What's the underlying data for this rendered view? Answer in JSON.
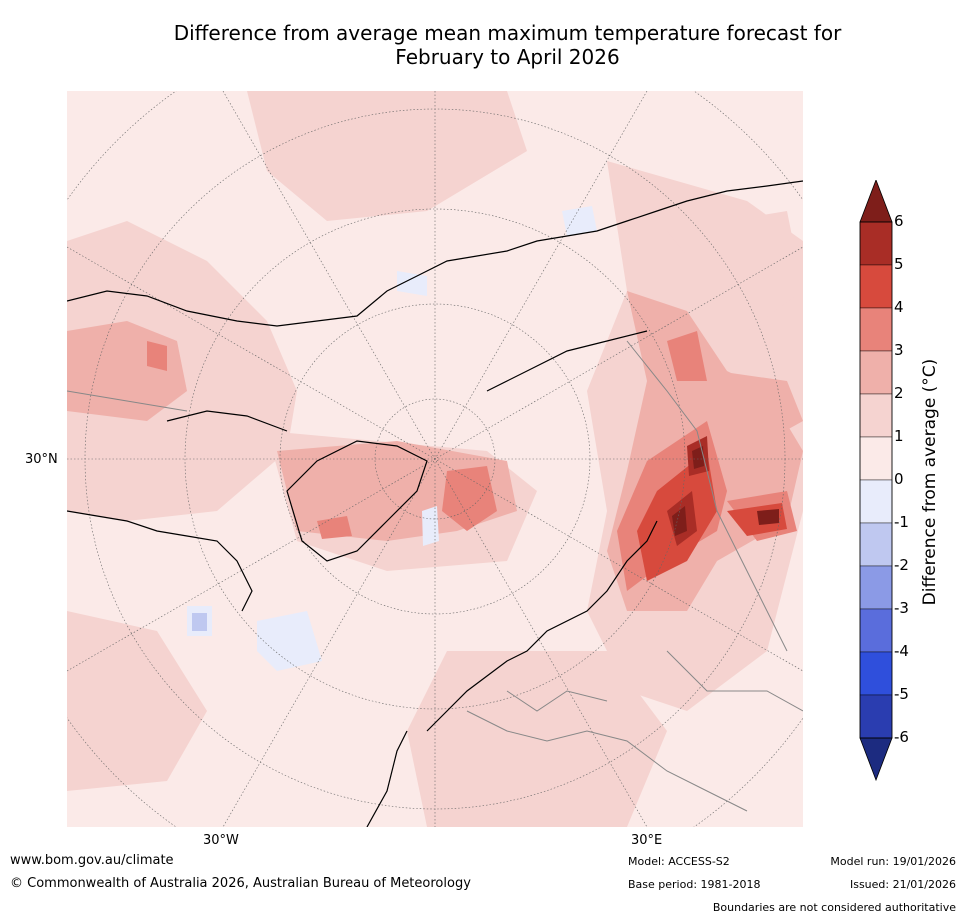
{
  "title": {
    "line1": "Difference from average mean maximum temperature forecast for",
    "line2": "February to April 2026"
  },
  "map": {
    "lat_label": "30°N",
    "lon_labels": [
      "30°W",
      "30°E"
    ]
  },
  "colorbar": {
    "title": "Difference from average (°C)",
    "ticks": [
      "6",
      "5",
      "4",
      "3",
      "2",
      "1",
      "0",
      "-1",
      "-2",
      "-3",
      "-4",
      "-5",
      "-6"
    ],
    "colors": [
      "#7e1e1a",
      "#a92d26",
      "#d74a3d",
      "#e8837a",
      "#efb0aa",
      "#f5d3d0",
      "#fbeae8",
      "#e8ecfb",
      "#bfc8f0",
      "#8b9ae6",
      "#5a6ddc",
      "#2f4fdc",
      "#2a3db0",
      "#1c2b80"
    ]
  },
  "footer": {
    "website": "www.bom.gov.au/climate",
    "copyright": "© Commonwealth of Australia 2026, Australian Bureau of Meteorology",
    "model": "Model: ACCESS-S2",
    "base_period": "Base period: 1981-2018",
    "model_run": "Model run: 19/01/2026",
    "issued": "Issued: 21/01/2026",
    "disclaimer": "Boundaries are not considered authoritative"
  }
}
